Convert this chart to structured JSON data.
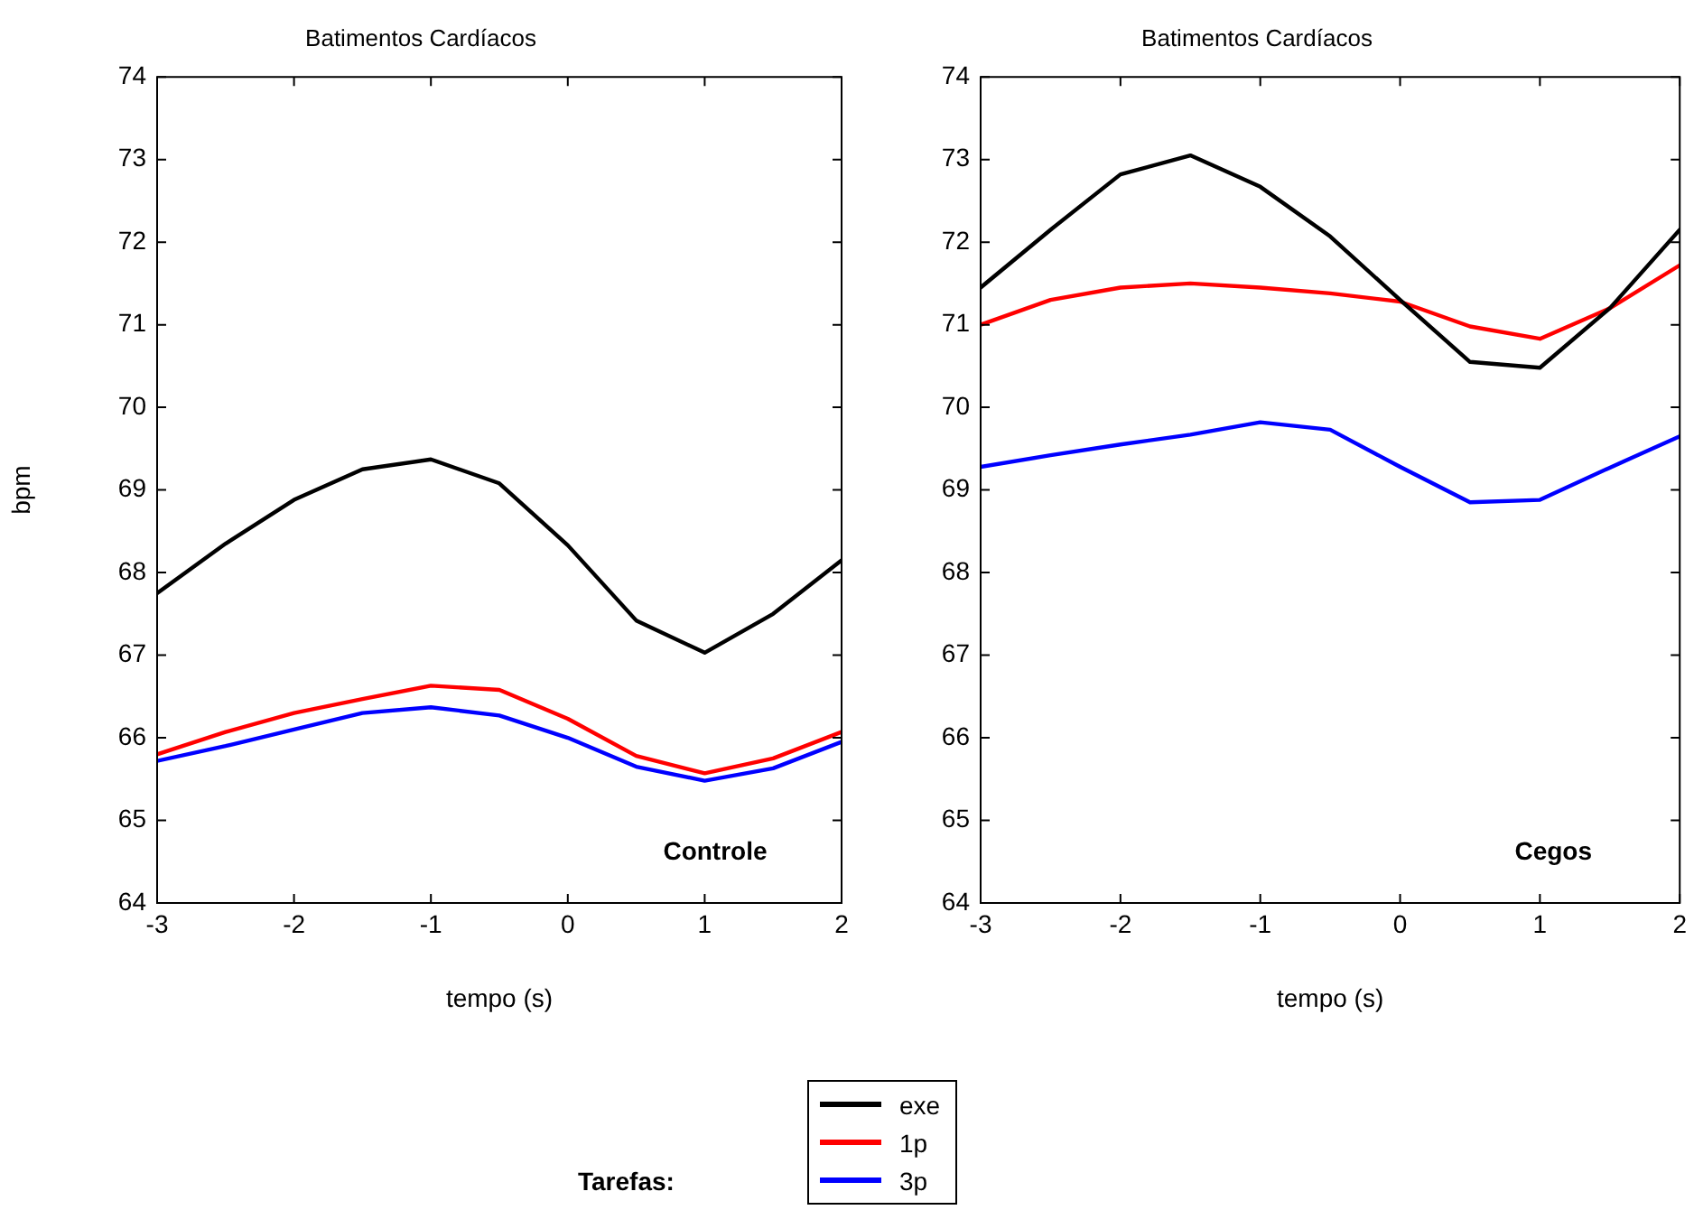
{
  "chart_data": [
    {
      "type": "line",
      "title": "Batimentos Cardíacos",
      "xlabel": "tempo (s)",
      "ylabel": "bpm",
      "x": [
        -3,
        -2.5,
        -2,
        -1.5,
        -1,
        -0.5,
        0,
        0.5,
        1,
        1.5,
        2
      ],
      "series": [
        {
          "color": "#000000",
          "values": [
            67.75,
            68.35,
            68.88,
            69.25,
            69.37,
            69.08,
            68.33,
            67.42,
            67.03,
            67.5,
            68.15
          ]
        },
        {
          "color": "#ff0000",
          "values": [
            65.8,
            66.07,
            66.3,
            66.47,
            66.63,
            66.58,
            66.23,
            65.78,
            65.57,
            65.75,
            66.07
          ]
        },
        {
          "color": "#0000ff",
          "values": [
            65.72,
            65.9,
            66.1,
            66.3,
            66.37,
            66.27,
            66.0,
            65.65,
            65.48,
            65.63,
            65.95
          ]
        }
      ],
      "xlim": [
        -3,
        2
      ],
      "xticks": [
        -3,
        -2,
        -1,
        0,
        1,
        2
      ],
      "ylim": [
        64,
        74
      ],
      "yticks": [
        64,
        65,
        66,
        67,
        68,
        69,
        70,
        71,
        72,
        73,
        74
      ],
      "annotations": [
        "Controle"
      ],
      "grid": false,
      "legend": false,
      "marker": "none",
      "line_style": "solid"
    },
    {
      "type": "line",
      "title": "Batimentos Cardíacos",
      "xlabel": "tempo (s)",
      "legend_title": "Tarefas:",
      "x": [
        -3,
        -2.5,
        -2,
        -1.5,
        -1,
        -0.5,
        0,
        0.5,
        1,
        1.5,
        2
      ],
      "series": [
        {
          "name": "exe",
          "color": "#000000",
          "values": [
            71.45,
            72.15,
            72.82,
            73.05,
            72.67,
            72.07,
            71.3,
            70.55,
            70.48,
            71.2,
            72.15
          ]
        },
        {
          "name": "1p",
          "color": "#ff0000",
          "values": [
            71.0,
            71.3,
            71.45,
            71.5,
            71.45,
            71.38,
            71.28,
            70.98,
            70.83,
            71.2,
            71.72
          ]
        },
        {
          "name": "3p",
          "color": "#0000ff",
          "values": [
            69.28,
            69.42,
            69.55,
            69.67,
            69.82,
            69.73,
            69.28,
            68.85,
            68.88,
            69.27,
            69.65
          ]
        }
      ],
      "xlim": [
        -3,
        2
      ],
      "xticks": [
        -3,
        -2,
        -1,
        0,
        1,
        2
      ],
      "ylim": [
        64,
        74
      ],
      "yticks": [
        64,
        65,
        66,
        67,
        68,
        69,
        70,
        71,
        72,
        73,
        74
      ],
      "annotations": [
        "Cegos"
      ],
      "grid": false,
      "legend": "bottom",
      "marker": "none",
      "line_style": "solid"
    }
  ]
}
